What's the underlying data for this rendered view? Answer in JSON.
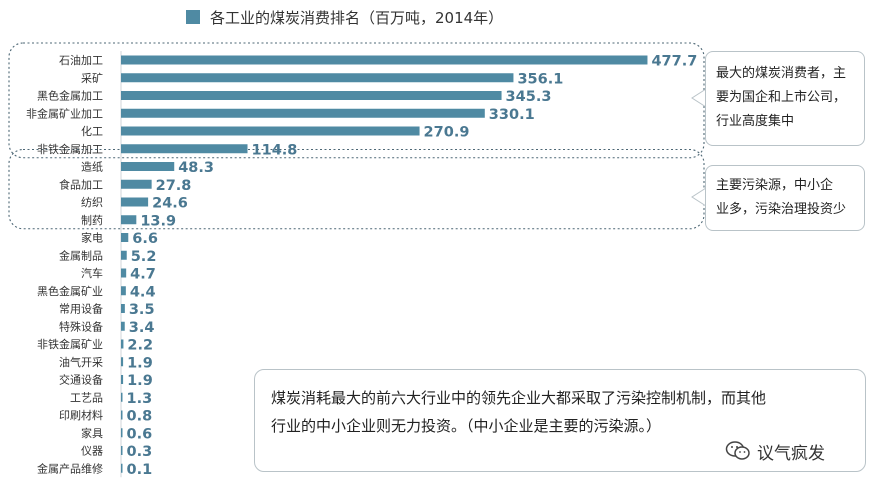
{
  "legend_label": "各工业的煤炭消费排名（百万吨，2014年）",
  "annotations": {
    "group1": [
      "最大的煤炭消费者，主",
      "要为国企和上市公司，",
      "行业高度集中"
    ],
    "group2": [
      "主要污染源，中小企",
      "业多，污染治理投资少"
    ],
    "bottom": [
      "煤炭消耗最大的前六大行业中的领先企业大都采取了污染控制机制，而其他",
      "行业的中小企业则无力投资。（中小企业是主要的污染源。）"
    ]
  },
  "watermark": "议气疯发",
  "colors": {
    "bar": "#4f8aa3",
    "value": "#4a7891",
    "label": "#333333",
    "dashed": "#4d6775"
  },
  "chart_data": {
    "type": "bar",
    "orientation": "horizontal",
    "series_name": "各工业的煤炭消费排名（百万吨，2014年）",
    "categories": [
      "石油加工",
      "采矿",
      "黑色金属加工",
      "非金属矿业加工",
      "化工",
      "非铁金属加工",
      "造纸",
      "食品加工",
      "纺织",
      "制药",
      "家电",
      "金属制品",
      "汽车",
      "黑色金属矿业",
      "常用设备",
      "特殊设备",
      "非铁金属矿业",
      "油气开采",
      "交通设备",
      "工艺品",
      "印刷材料",
      "家具",
      "仪器",
      "金属产品维修"
    ],
    "values": [
      477.7,
      356.1,
      345.3,
      330.1,
      270.9,
      114.8,
      48.3,
      27.8,
      24.6,
      13.9,
      6.6,
      5.2,
      4.7,
      4.4,
      3.5,
      3.4,
      2.2,
      1.9,
      1.9,
      1.3,
      0.8,
      0.6,
      0.3,
      0.1
    ],
    "value_labels": [
      "477.7",
      "356.1",
      "345.3",
      "330.1",
      "270.9",
      "114.8",
      "48.3",
      "27.8",
      "24.6",
      "13.9",
      "6.6",
      "5.2",
      "4.7",
      "4.4",
      "3.5",
      "3.4",
      "2.2",
      "1.9",
      "1.9",
      "1.3",
      "0.8",
      "0.6",
      "0.3",
      "0.1"
    ],
    "xlim": [
      0,
      480
    ],
    "groups": [
      [
        0,
        5
      ],
      [
        6,
        9
      ]
    ],
    "grid": false,
    "legend": "top"
  }
}
